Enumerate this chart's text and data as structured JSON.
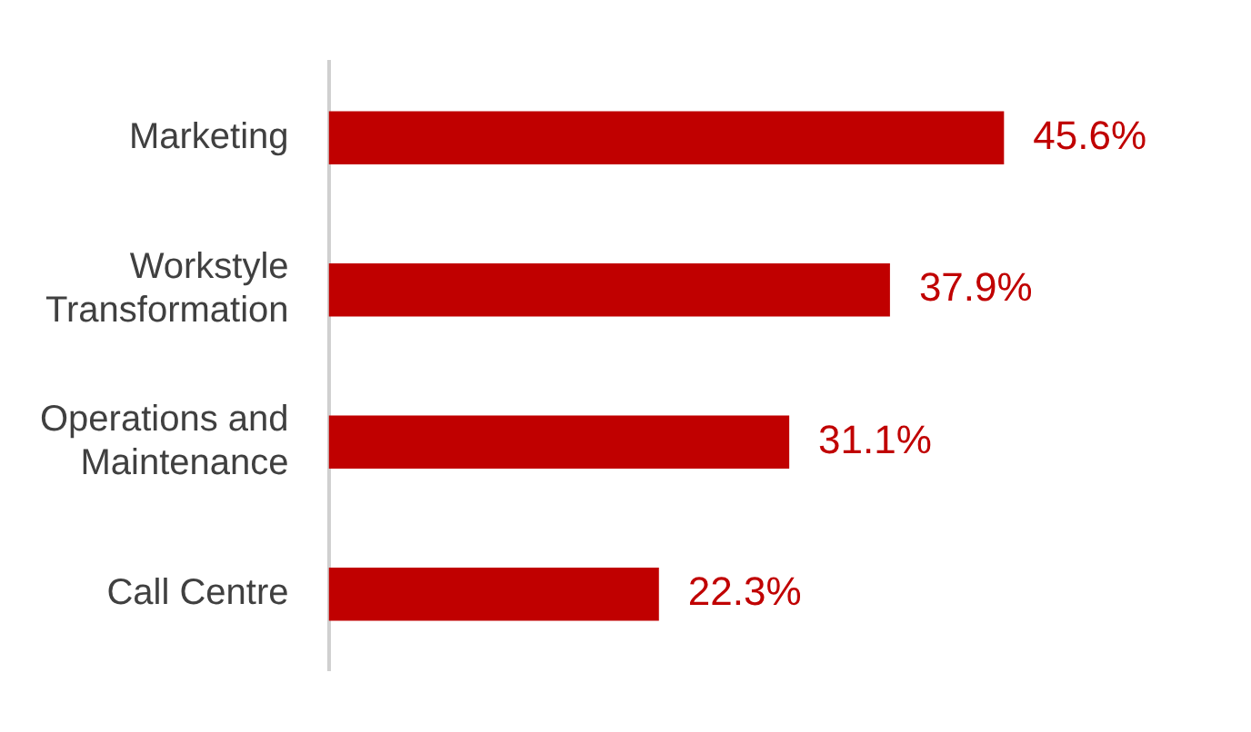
{
  "chart_data": {
    "type": "bar",
    "orientation": "horizontal",
    "categories": [
      "Marketing",
      "Workstyle Transformation",
      "Operations and Maintenance",
      "Call Centre"
    ],
    "values": [
      45.6,
      37.9,
      31.1,
      22.3
    ],
    "value_labels": [
      "45.6%",
      "37.9%",
      "31.1%",
      "22.3%"
    ],
    "color": "#c00000",
    "legend": false,
    "tick_labels": "y"
  }
}
